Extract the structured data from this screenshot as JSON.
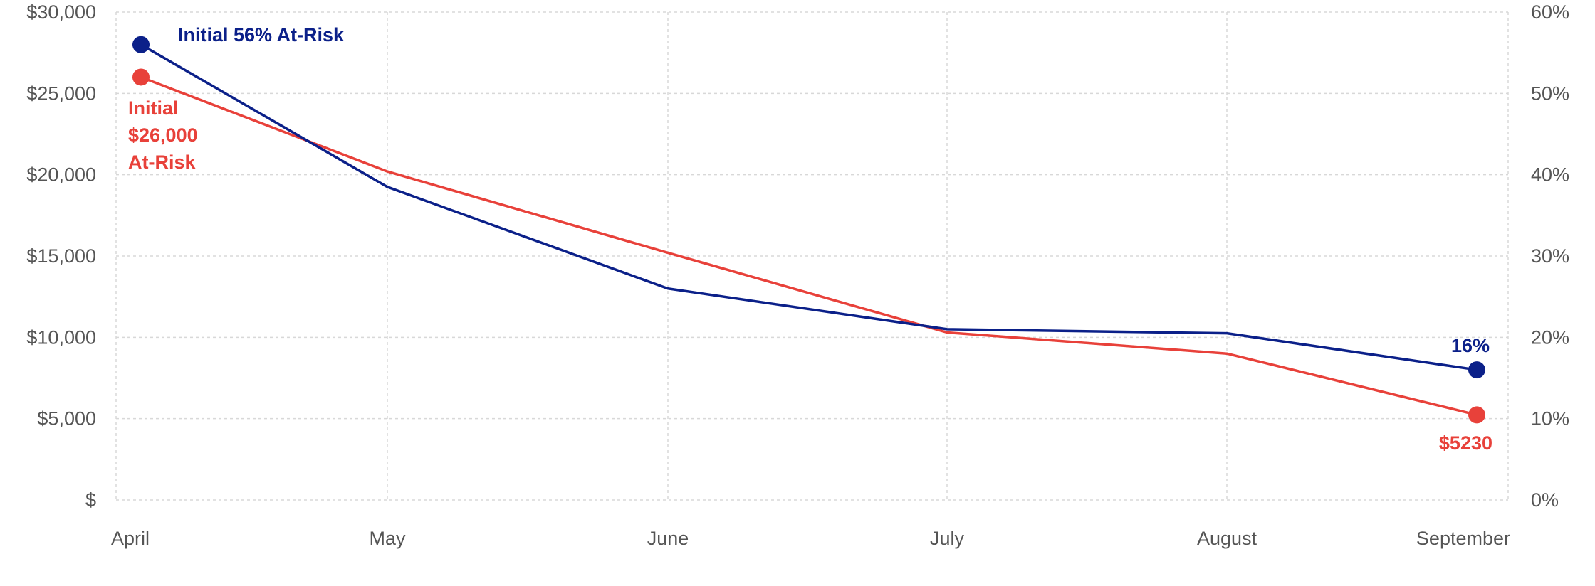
{
  "chart_data": {
    "type": "line",
    "categories": [
      "April",
      "May",
      "June",
      "July",
      "August",
      "September"
    ],
    "y_left": {
      "range": [
        0,
        30000
      ],
      "ticks": [
        0,
        5000,
        10000,
        15000,
        20000,
        25000,
        30000
      ],
      "tick_labels": [
        "$",
        "$5,000",
        "$10,000",
        "$15,000",
        "$20,000",
        "$25,000",
        "$30,000"
      ]
    },
    "y_right": {
      "range": [
        0,
        60
      ],
      "ticks": [
        0,
        10,
        20,
        30,
        40,
        50,
        60
      ],
      "tick_labels": [
        "0%",
        "10%",
        "20%",
        "30%",
        "40%",
        "50%",
        "60%"
      ]
    },
    "series": [
      {
        "axis": "left",
        "color": "#E8413A",
        "values": [
          26000,
          20200,
          15200,
          10300,
          9000,
          5230
        ]
      },
      {
        "axis": "right",
        "color": "#0B2089",
        "values": [
          56,
          38.5,
          26,
          21,
          20.5,
          16
        ]
      }
    ],
    "annotations": [
      {
        "series": 1,
        "point": 0,
        "text": "Initial 56% At-Risk"
      },
      {
        "series": 0,
        "point": 0,
        "lines": [
          "Initial",
          "$26,000",
          "At-Risk"
        ]
      },
      {
        "series": 1,
        "point": 5,
        "text": "16%"
      },
      {
        "series": 0,
        "point": 5,
        "text": "$5230"
      }
    ],
    "grid": true
  }
}
